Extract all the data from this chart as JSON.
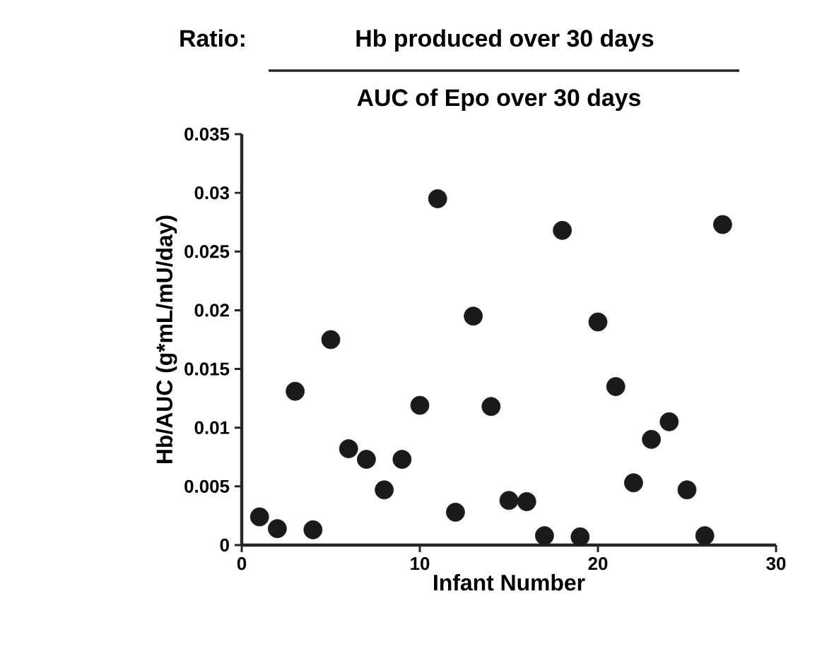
{
  "chart_data": {
    "type": "scatter",
    "title": "Ratio:",
    "annotations": [
      "Hb produced over 30 days",
      "AUC of Epo over 30 days"
    ],
    "xlabel": "Infant Number",
    "ylabel": "Hb/AUC   (g*mL/mU/day)",
    "x": [
      1,
      2,
      3,
      4,
      5,
      6,
      7,
      8,
      9,
      10,
      11,
      12,
      13,
      14,
      15,
      16,
      17,
      18,
      19,
      20,
      21,
      22,
      23,
      24,
      25,
      26,
      27
    ],
    "values": [
      0.0024,
      0.0014,
      0.0131,
      0.0013,
      0.0175,
      0.0082,
      0.0073,
      0.0047,
      0.0073,
      0.0119,
      0.0295,
      0.0028,
      0.0195,
      0.0118,
      0.0038,
      0.0037,
      0.0008,
      0.0268,
      0.0007,
      0.019,
      0.0135,
      0.0053,
      0.009,
      0.0105,
      0.0047,
      0.0008,
      0.0273
    ],
    "color": "#1a1a1a",
    "marker": "circle",
    "xlim": [
      0,
      30
    ],
    "xticks": [
      0,
      10,
      20,
      30
    ],
    "ylim": [
      0,
      0.035
    ],
    "yticks": [
      0,
      0.005,
      0.01,
      0.015,
      0.02,
      0.025,
      0.03,
      0.035
    ],
    "grid": false
  }
}
